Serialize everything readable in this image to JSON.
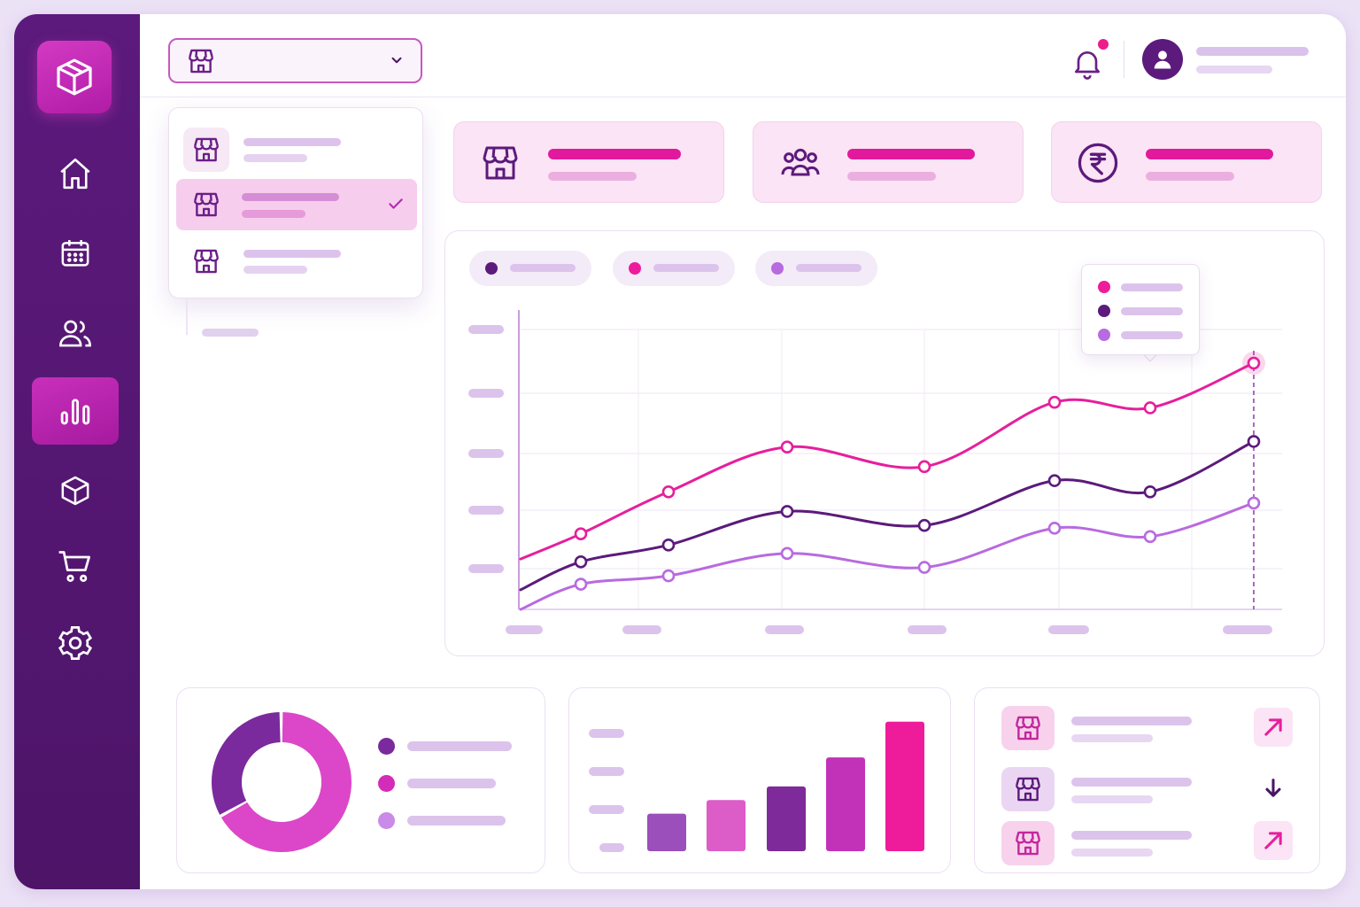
{
  "colors": {
    "sidebar": "#5c1a7c",
    "accent_magenta": "#ee1c8a",
    "series_dark": "#5c1a7c",
    "series_magenta": "#e61f9c",
    "series_light": "#b86ae0",
    "placeholder_bar": "#dcc3ec"
  },
  "sidebar": {
    "logo_icon": "package-icon",
    "items": [
      {
        "icon": "home-icon",
        "active": false
      },
      {
        "icon": "calendar-icon",
        "active": false
      },
      {
        "icon": "users-icon",
        "active": false
      },
      {
        "icon": "bar-chart-icon",
        "active": true
      },
      {
        "icon": "package-icon",
        "active": false
      },
      {
        "icon": "cart-icon",
        "active": false
      },
      {
        "icon": "settings-icon",
        "active": false
      }
    ]
  },
  "header": {
    "store_selector": {
      "icon": "store-icon",
      "expanded": true
    },
    "notification": {
      "icon": "bell-icon",
      "has_unread": true
    },
    "user": {
      "icon": "user-avatar-icon"
    }
  },
  "store_dropdown": {
    "options": [
      {
        "icon": "store-icon",
        "selected": false
      },
      {
        "icon": "store-icon",
        "selected": true
      },
      {
        "icon": "store-icon",
        "selected": false
      }
    ]
  },
  "kpis": [
    {
      "icon": "store-icon"
    },
    {
      "icon": "customers-icon"
    },
    {
      "icon": "rupee-icon"
    }
  ],
  "chart_data": [
    {
      "type": "line",
      "title": "",
      "xlabel": "",
      "ylabel": "",
      "x": [
        1,
        2,
        3,
        4,
        5,
        6,
        7,
        8
      ],
      "ylim": [
        0,
        100
      ],
      "grid": true,
      "legend": "top-left",
      "series": [
        {
          "color": "#e61f9c",
          "values": [
            18,
            27,
            42,
            58,
            51,
            74,
            72,
            88
          ]
        },
        {
          "color": "#5c1a7c",
          "values": [
            7,
            17,
            23,
            35,
            30,
            46,
            42,
            60
          ]
        },
        {
          "color": "#b86ae0",
          "values": [
            0,
            9,
            12,
            20,
            15,
            29,
            26,
            38
          ]
        }
      ],
      "highlighted_point_index": 7
    },
    {
      "type": "pie",
      "title": "",
      "slices": [
        {
          "color": "#7a2a9c",
          "value": 33
        },
        {
          "color": "#db47c8",
          "value": 67
        }
      ],
      "legend": "right"
    },
    {
      "type": "bar",
      "title": "",
      "categories": [
        "",
        "",
        "",
        "",
        ""
      ],
      "values": [
        22,
        30,
        38,
        55,
        76
      ],
      "colors": [
        "#9b4fba",
        "#dc5cc8",
        "#7e2a9a",
        "#c232b8",
        "#ee1c9a"
      ],
      "ylim": [
        0,
        80
      ]
    }
  ],
  "store_list": {
    "items": [
      {
        "icon": "store-icon",
        "trend_icon": "arrow-up-right-icon",
        "trend": "up"
      },
      {
        "icon": "store-icon",
        "trend_icon": "arrow-down-icon",
        "trend": "down"
      },
      {
        "icon": "store-icon",
        "trend_icon": "arrow-up-right-icon",
        "trend": "up"
      }
    ]
  }
}
